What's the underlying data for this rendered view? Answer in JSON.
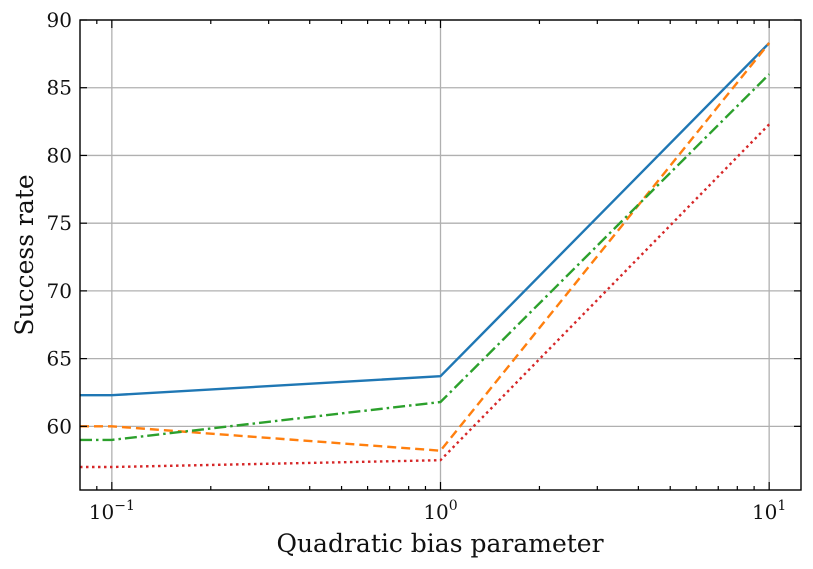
{
  "chart_data": {
    "type": "line",
    "xscale": "log",
    "xlabel": "Quadratic bias parameter",
    "ylabel": "Success rate",
    "xlim": [
      0.08,
      12.5
    ],
    "ylim": [
      55.3,
      90
    ],
    "grid": true,
    "x_ticks": [
      {
        "value": 0.1,
        "base": "10",
        "exp": "−1"
      },
      {
        "value": 1,
        "base": "10",
        "exp": "0"
      },
      {
        "value": 10,
        "base": "10",
        "exp": "1"
      }
    ],
    "y_ticks": [
      60,
      65,
      70,
      75,
      80,
      85,
      90
    ],
    "series": [
      {
        "color": "#1f77b4",
        "dash": "",
        "x": [
          0.08,
          0.1,
          1,
          10
        ],
        "y": [
          62.3,
          62.3,
          63.7,
          88.3
        ]
      },
      {
        "color": "#ff7f0e",
        "dash": "9,5",
        "x": [
          0.08,
          0.1,
          1,
          10
        ],
        "y": [
          60.0,
          60.0,
          58.2,
          88.3
        ]
      },
      {
        "color": "#2ca02c",
        "dash": "12,4,2.5,4",
        "x": [
          0.08,
          0.1,
          1,
          10
        ],
        "y": [
          59.0,
          59.0,
          61.8,
          86.0
        ]
      },
      {
        "color": "#d62728",
        "dash": "2.5,3.5",
        "x": [
          0.08,
          0.1,
          1,
          10
        ],
        "y": [
          57.0,
          57.0,
          57.5,
          82.3
        ]
      }
    ]
  }
}
